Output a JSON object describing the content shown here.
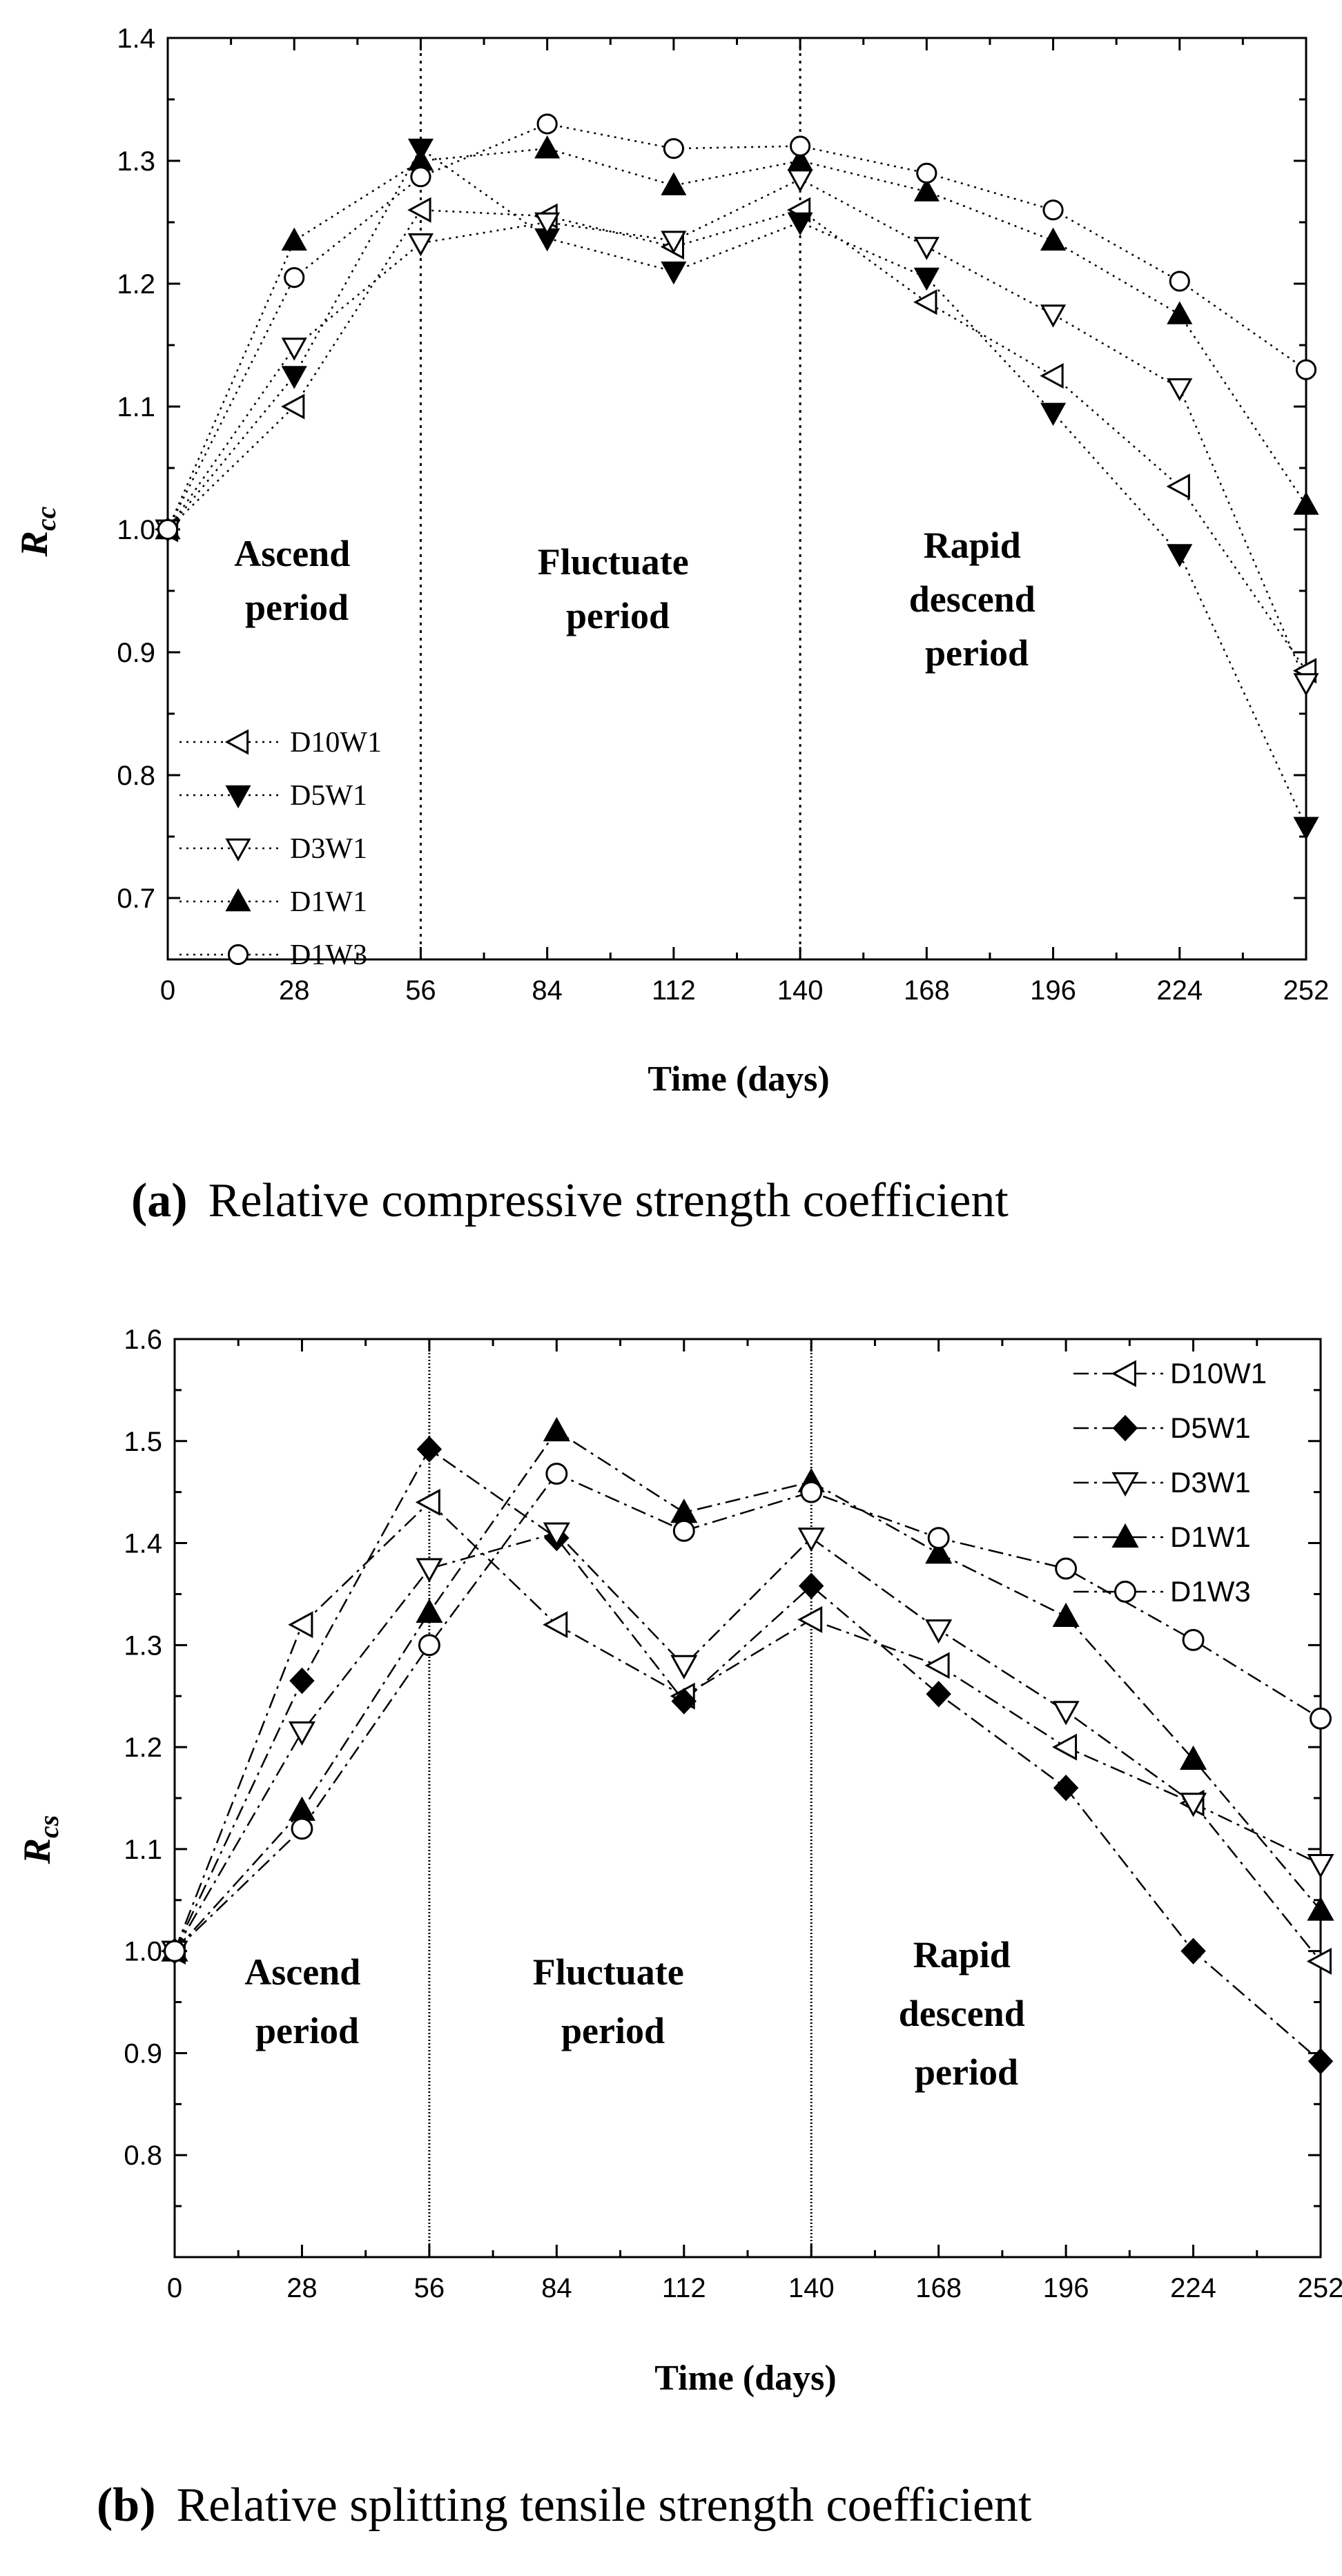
{
  "chart_data": [
    {
      "type": "line",
      "title": "",
      "caption_label": "(a)",
      "caption_text": "Relative compressive strength coefficient",
      "xlabel": "Time (days)",
      "ylabel_main": "R",
      "ylabel_sub": "cc",
      "xlim": [
        0,
        252
      ],
      "ylim": [
        0.65,
        1.4
      ],
      "xticks": [
        0,
        28,
        56,
        84,
        112,
        140,
        168,
        196,
        224,
        252
      ],
      "yticks": [
        0.7,
        0.8,
        0.9,
        1.0,
        1.1,
        1.2,
        1.3,
        1.4
      ],
      "ytick_labels": [
        "0.7",
        "0.8",
        "0.9",
        "1.0",
        "1.1",
        "1.2",
        "1.3",
        "1.4"
      ],
      "vlines": [
        56,
        140
      ],
      "legend_position": "bottom-left",
      "annotations": [
        {
          "lines": [
            "Ascend",
            "period"
          ]
        },
        {
          "lines": [
            "Fluctuate",
            "period"
          ]
        },
        {
          "lines": [
            "Rapid",
            "descend",
            "period"
          ]
        }
      ],
      "x": [
        0,
        28,
        56,
        84,
        112,
        140,
        168,
        196,
        224,
        252
      ],
      "series": [
        {
          "name": "D10W1",
          "marker": "tri-left-open",
          "values": [
            1.0,
            1.1,
            1.26,
            1.255,
            1.23,
            1.26,
            1.185,
            1.125,
            1.035,
            0.885
          ]
        },
        {
          "name": "D5W1",
          "marker": "tri-down-filled",
          "values": [
            1.0,
            1.125,
            1.31,
            1.237,
            1.21,
            1.25,
            1.205,
            1.095,
            0.98,
            0.758
          ]
        },
        {
          "name": "D3W1",
          "marker": "tri-down-open",
          "values": [
            1.0,
            1.148,
            1.233,
            1.25,
            1.235,
            1.285,
            1.23,
            1.175,
            1.115,
            0.875
          ]
        },
        {
          "name": "D1W1",
          "marker": "tri-up-filled",
          "values": [
            1.0,
            1.235,
            1.3,
            1.31,
            1.28,
            1.3,
            1.275,
            1.235,
            1.175,
            1.02
          ]
        },
        {
          "name": "D1W3",
          "marker": "circle-open",
          "values": [
            1.0,
            1.205,
            1.287,
            1.33,
            1.31,
            1.312,
            1.29,
            1.26,
            1.202,
            1.13
          ]
        }
      ]
    },
    {
      "type": "line",
      "title": "",
      "caption_label": "(b)",
      "caption_text": "Relative splitting tensile strength coefficient",
      "xlabel": "Time (days)",
      "ylabel_main": "R",
      "ylabel_sub": "cs",
      "xlim": [
        0,
        252
      ],
      "ylim": [
        0.7,
        1.6
      ],
      "xticks": [
        0,
        28,
        56,
        84,
        112,
        140,
        168,
        196,
        224,
        252
      ],
      "yticks": [
        0.8,
        0.9,
        1.0,
        1.1,
        1.2,
        1.3,
        1.4,
        1.5,
        1.6
      ],
      "ytick_labels": [
        "0.8",
        "0.9",
        "1.0",
        "1.1",
        "1.2",
        "1.3",
        "1.4",
        "1.5",
        "1.6"
      ],
      "vlines": [
        56,
        140
      ],
      "legend_position": "top-right",
      "annotations": [
        {
          "lines": [
            "Ascend",
            "period"
          ]
        },
        {
          "lines": [
            "Fluctuate",
            "period"
          ]
        },
        {
          "lines": [
            "Rapid",
            "descend",
            "period"
          ]
        }
      ],
      "x": [
        0,
        28,
        56,
        84,
        112,
        140,
        168,
        196,
        224,
        252
      ],
      "series": [
        {
          "name": "D10W1",
          "marker": "tri-left-open",
          "values": [
            1.0,
            1.32,
            1.44,
            1.32,
            1.25,
            1.325,
            1.28,
            1.2,
            1.145,
            0.99
          ]
        },
        {
          "name": "D5W1",
          "marker": "diamond-filled",
          "values": [
            1.0,
            1.265,
            1.492,
            1.405,
            1.245,
            1.358,
            1.252,
            1.16,
            1.0,
            0.892
          ]
        },
        {
          "name": "D3W1",
          "marker": "tri-down-open",
          "values": [
            1.0,
            1.215,
            1.375,
            1.41,
            1.28,
            1.405,
            1.315,
            1.235,
            1.145,
            1.085
          ]
        },
        {
          "name": "D1W1",
          "marker": "tri-up-filled",
          "values": [
            1.0,
            1.138,
            1.332,
            1.51,
            1.43,
            1.46,
            1.39,
            1.328,
            1.188,
            1.04
          ]
        },
        {
          "name": "D1W3",
          "marker": "circle-open",
          "values": [
            1.0,
            1.12,
            1.3,
            1.468,
            1.412,
            1.45,
            1.405,
            1.375,
            1.305,
            1.228
          ]
        }
      ]
    }
  ]
}
